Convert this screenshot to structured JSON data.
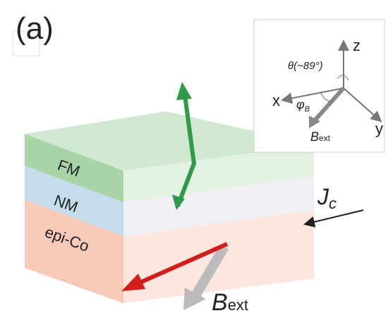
{
  "panel_label": "(a)",
  "layers": [
    "FM",
    "NM",
    "epi-Co"
  ],
  "current": {
    "main": "J",
    "sub": "c"
  },
  "field": {
    "main": "B",
    "sub": "ext"
  },
  "inset": {
    "z": "z",
    "x": "x",
    "y": "y",
    "theta": "θ(~89°)",
    "phi": {
      "main": "φ",
      "sub": "B"
    },
    "field": {
      "main": "B",
      "sub": "ext"
    }
  }
}
